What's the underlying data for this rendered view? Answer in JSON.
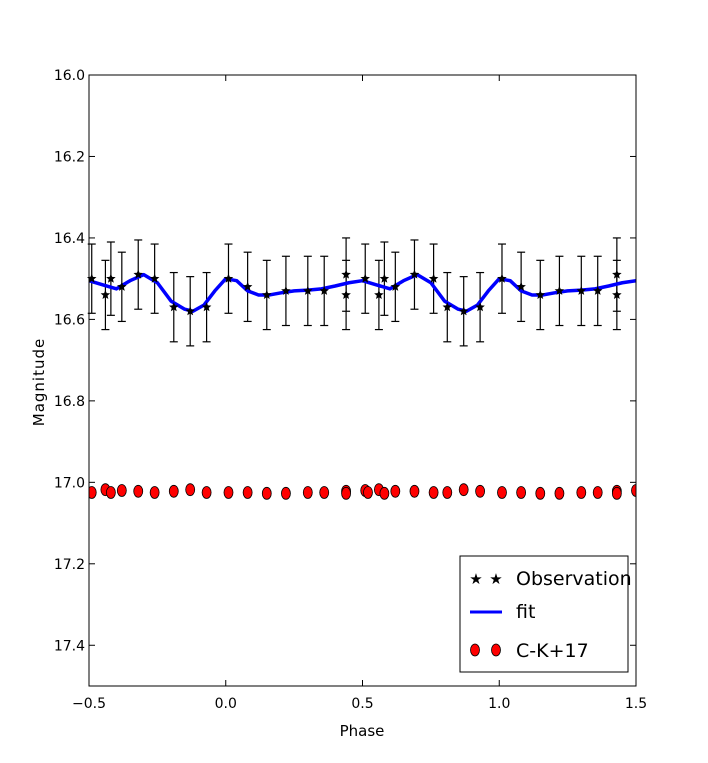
{
  "chart_data": {
    "type": "scatter",
    "title": "",
    "xlabel": "Phase",
    "ylabel": "Magnitude",
    "xlim": [
      -0.5,
      1.5
    ],
    "ylim": [
      17.5,
      16.0
    ],
    "y_inverted": true,
    "xticks": [
      -0.5,
      0.0,
      0.5,
      1.0,
      1.5
    ],
    "xtick_labels": [
      "−0.5",
      "0.0",
      "0.5",
      "1.0",
      "1.5"
    ],
    "yticks": [
      16.0,
      16.2,
      16.4,
      16.6,
      16.8,
      17.0,
      17.2,
      17.4
    ],
    "ytick_labels": [
      "16.0",
      "16.2",
      "16.4",
      "16.6",
      "16.8",
      "17.0",
      "17.2",
      "17.4"
    ],
    "legend_position": "lower-right",
    "series": [
      {
        "name": "Observation",
        "kind": "scatter-errorbar",
        "marker": "star",
        "color": "#000000",
        "x": [
          -0.49,
          -0.44,
          -0.42,
          -0.38,
          -0.32,
          -0.26,
          -0.19,
          -0.13,
          -0.07,
          0.01,
          0.08,
          0.15,
          0.22,
          0.3,
          0.36,
          0.44,
          0.44,
          0.51,
          0.56,
          0.58,
          0.62,
          0.69,
          0.76,
          0.81,
          0.87,
          0.93,
          1.01,
          1.08,
          1.15,
          1.22,
          1.3,
          1.36,
          1.43,
          1.43
        ],
        "y": [
          16.5,
          16.54,
          16.5,
          16.52,
          16.49,
          16.5,
          16.57,
          16.58,
          16.57,
          16.5,
          16.52,
          16.54,
          16.53,
          16.53,
          16.53,
          16.49,
          16.54,
          16.5,
          16.54,
          16.5,
          16.52,
          16.49,
          16.5,
          16.57,
          16.58,
          16.57,
          16.5,
          16.52,
          16.54,
          16.53,
          16.53,
          16.53,
          16.49,
          16.54
        ],
        "yerr": [
          0.085,
          0.085,
          0.09,
          0.085,
          0.085,
          0.085,
          0.085,
          0.085,
          0.085,
          0.085,
          0.085,
          0.085,
          0.085,
          0.085,
          0.085,
          0.09,
          0.085,
          0.085,
          0.085,
          0.09,
          0.085,
          0.085,
          0.085,
          0.085,
          0.085,
          0.085,
          0.085,
          0.085,
          0.085,
          0.085,
          0.085,
          0.085,
          0.09,
          0.085
        ]
      },
      {
        "name": "fit",
        "kind": "line",
        "color": "#0000ff",
        "x": [
          -0.5,
          -0.45,
          -0.4,
          -0.35,
          -0.3,
          -0.25,
          -0.2,
          -0.15,
          -0.12,
          -0.08,
          -0.04,
          0.0,
          0.04,
          0.08,
          0.12,
          0.16,
          0.2,
          0.25,
          0.3,
          0.35,
          0.4,
          0.45,
          0.5,
          0.55,
          0.6,
          0.65,
          0.7,
          0.75,
          0.8,
          0.85,
          0.88,
          0.92,
          0.96,
          1.0,
          1.04,
          1.08,
          1.12,
          1.16,
          1.2,
          1.25,
          1.3,
          1.35,
          1.4,
          1.45,
          1.5
        ],
        "y": [
          16.505,
          16.515,
          16.525,
          16.505,
          16.49,
          16.51,
          16.555,
          16.575,
          16.58,
          16.565,
          16.53,
          16.5,
          16.505,
          16.53,
          16.54,
          16.54,
          16.535,
          16.53,
          16.528,
          16.525,
          16.518,
          16.51,
          16.505,
          16.515,
          16.525,
          16.505,
          16.49,
          16.51,
          16.555,
          16.575,
          16.58,
          16.565,
          16.53,
          16.5,
          16.505,
          16.53,
          16.54,
          16.54,
          16.535,
          16.53,
          16.528,
          16.525,
          16.518,
          16.51,
          16.505
        ]
      },
      {
        "name": "C-K+17",
        "kind": "scatter",
        "marker": "circle",
        "color": "#ff0000",
        "x": [
          -0.49,
          -0.44,
          -0.42,
          -0.38,
          -0.32,
          -0.26,
          -0.19,
          -0.13,
          -0.07,
          0.01,
          0.08,
          0.15,
          0.22,
          0.3,
          0.36,
          0.44,
          0.44,
          0.51,
          0.52,
          0.56,
          0.58,
          0.62,
          0.69,
          0.76,
          0.81,
          0.87,
          0.93,
          1.01,
          1.08,
          1.15,
          1.22,
          1.3,
          1.36,
          1.43,
          1.43,
          1.5
        ],
        "y": [
          17.025,
          17.018,
          17.025,
          17.02,
          17.022,
          17.025,
          17.022,
          17.018,
          17.025,
          17.025,
          17.025,
          17.027,
          17.027,
          17.025,
          17.025,
          17.022,
          17.027,
          17.02,
          17.025,
          17.018,
          17.027,
          17.022,
          17.022,
          17.025,
          17.025,
          17.018,
          17.022,
          17.025,
          17.025,
          17.027,
          17.027,
          17.025,
          17.025,
          17.022,
          17.027,
          17.02
        ]
      }
    ]
  }
}
